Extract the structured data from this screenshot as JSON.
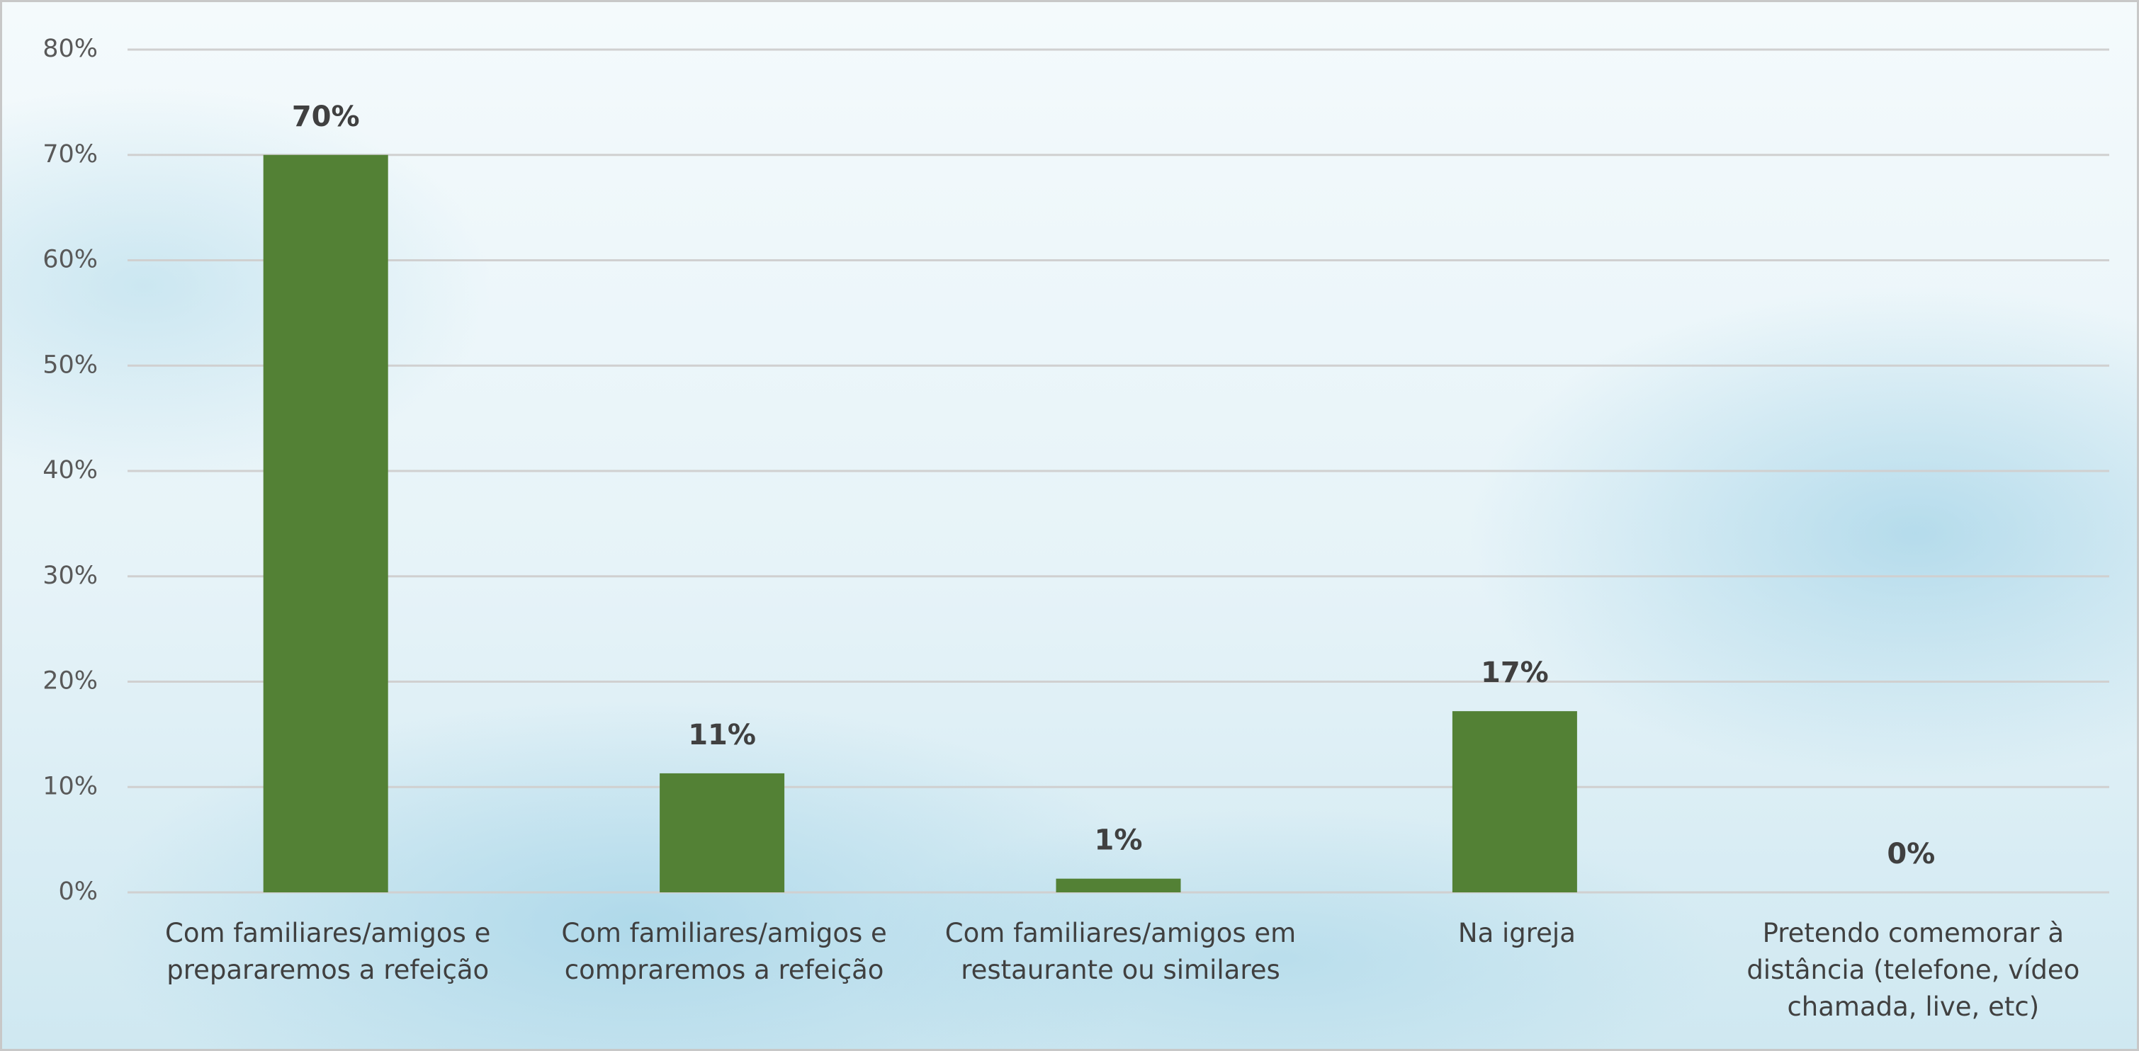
{
  "chart_data": {
    "type": "bar",
    "categories": [
      "Com familiares/amigos e prepararemos a refeição",
      "Com familiares/amigos e compraremos a refeição",
      "Com familiares/amigos em restaurante ou similares",
      "Na igreja",
      "Pretendo comemorar à distância (telefone, vídeo chamada, live, etc)"
    ],
    "values": [
      70,
      11.3,
      1.3,
      17.2,
      0
    ],
    "value_labels": [
      "70%",
      "11%",
      "1%",
      "17%",
      "0%"
    ],
    "color": "#538135",
    "ylim": [
      0,
      80
    ],
    "yticks": [
      {
        "value": 0,
        "label": "0%"
      },
      {
        "value": 10,
        "label": "10%"
      },
      {
        "value": 20,
        "label": "20%"
      },
      {
        "value": 30,
        "label": "30%"
      },
      {
        "value": 40,
        "label": "40%"
      },
      {
        "value": 50,
        "label": "50%"
      },
      {
        "value": 60,
        "label": "60%"
      },
      {
        "value": 70,
        "label": "70%"
      },
      {
        "value": 80,
        "label": "80%"
      }
    ],
    "grid": true
  }
}
